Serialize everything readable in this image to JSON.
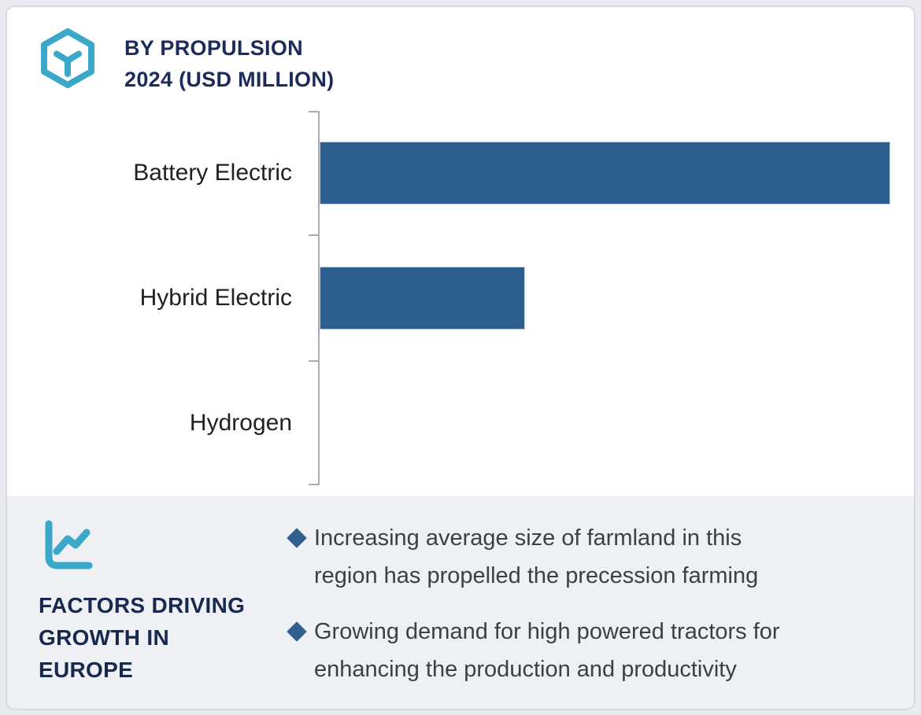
{
  "header": {
    "title": "BY PROPULSION\n2024 (USD MILLION)"
  },
  "chart_data": {
    "type": "bar",
    "orientation": "horizontal",
    "title": "BY PROPULSION 2024 (USD MILLION)",
    "unit": "USD Million",
    "year": "2024",
    "categories": [
      "Battery Electric",
      "Hybrid Electric",
      "Hydrogen"
    ],
    "values_relative_pct_of_max": [
      100,
      36,
      0
    ],
    "value_axis_labels_shown": false,
    "data_labels_shown": false,
    "grid": "off",
    "legend": "none",
    "bar_color": "#2D5F8E",
    "axis_color": "#ACACAC"
  },
  "factors_panel": {
    "heading": "FACTORS DRIVING\nGROWTH IN\nEUROPE",
    "bullets": [
      "Increasing average size of farmland in this\nregion has propelled the precession farming",
      "Growing demand for high powered tractors for\nenhancing the production and productivity"
    ]
  },
  "colors": {
    "accent_teal": "#3BA7C9",
    "navy_title": "#1B2C5C",
    "navy_panel_heading": "#17294F",
    "bar_blue": "#2D5F8E",
    "diamond_blue": "#2E5F8E",
    "panel_bg": "#EEF0F4",
    "card_bg": "#FFFFFF",
    "card_border": "#D7DAE0",
    "page_bg": "#E9EBF0",
    "axis_gray": "#ACACAC",
    "label_text": "#202124",
    "body_text": "#3C4046"
  }
}
